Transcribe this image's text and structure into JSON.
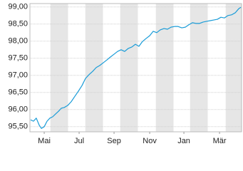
{
  "chart_data": {
    "type": "line",
    "x": [
      0.04,
      0.2,
      0.36,
      0.53,
      0.65,
      0.81,
      0.97,
      1.13,
      1.29,
      1.45,
      1.62,
      1.78,
      1.94,
      2.14,
      2.34,
      2.55,
      2.75,
      2.95,
      3.15,
      3.35,
      3.56,
      3.76,
      3.96,
      4.16,
      4.36,
      4.57,
      4.77,
      4.97,
      5.17,
      5.37,
      5.58,
      5.78,
      5.98,
      6.18,
      6.38,
      6.59,
      6.79,
      6.99,
      7.19,
      7.39,
      7.6,
      7.8,
      8.0,
      8.2,
      8.4,
      8.61,
      8.81,
      9.01,
      9.21,
      9.41,
      9.62,
      9.82,
      10.02,
      10.22,
      10.42,
      10.63,
      10.83,
      11.03,
      11.23,
      11.43,
      11.64,
      11.84,
      11.96
    ],
    "values": [
      95.7,
      95.66,
      95.75,
      95.54,
      95.45,
      95.5,
      95.66,
      95.75,
      95.79,
      95.87,
      95.95,
      96.04,
      96.06,
      96.12,
      96.23,
      96.39,
      96.54,
      96.7,
      96.91,
      97.02,
      97.12,
      97.23,
      97.29,
      97.37,
      97.45,
      97.54,
      97.62,
      97.7,
      97.75,
      97.7,
      97.79,
      97.83,
      97.91,
      97.85,
      97.99,
      98.08,
      98.16,
      98.29,
      98.25,
      98.33,
      98.37,
      98.35,
      98.41,
      98.43,
      98.43,
      98.39,
      98.41,
      98.48,
      98.54,
      98.52,
      98.52,
      98.56,
      98.58,
      98.6,
      98.62,
      98.64,
      98.7,
      98.68,
      98.75,
      98.77,
      98.83,
      98.95,
      98.99
    ],
    "color": "#1a9cd8",
    "xlim": [
      0,
      12
    ],
    "xticks": [
      {
        "value": 0.81,
        "label": "Mai"
      },
      {
        "value": 2.79,
        "label": "Jul"
      },
      {
        "value": 4.77,
        "label": "Sep"
      },
      {
        "value": 6.79,
        "label": "Nov"
      },
      {
        "value": 8.73,
        "label": "Jan"
      },
      {
        "value": 10.75,
        "label": "Mär"
      }
    ],
    "ylim": [
      95.35,
      99.1
    ],
    "yticks": [
      {
        "value": 95.5,
        "label": "95,50"
      },
      {
        "value": 96,
        "label": "96,00"
      },
      {
        "value": 96.5,
        "label": "96,50"
      },
      {
        "value": 97,
        "label": "97,00"
      },
      {
        "value": 97.5,
        "label": "97,50"
      },
      {
        "value": 98,
        "label": "98,00"
      },
      {
        "value": 98.5,
        "label": "98,50"
      },
      {
        "value": 99,
        "label": "99,00"
      }
    ],
    "grid": true
  }
}
